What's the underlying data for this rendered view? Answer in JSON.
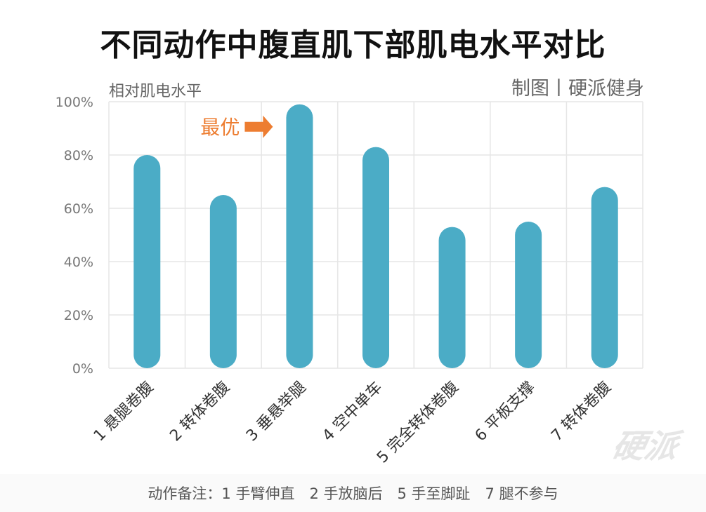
{
  "title": "不同动作中腹直肌下部肌电水平对比",
  "credit": "制图丨硬派健身",
  "watermark": "硬派",
  "footnote": "动作备注：1 手臂伸直　2 手放脑后　5 手至脚趾　7 腿不参与",
  "colors": {
    "bar": "#4bacc6",
    "annotation": "#ed7d31",
    "grid": "#e6e6e6"
  },
  "chart_data": {
    "type": "bar",
    "ylabel": "相对肌电水平",
    "xlabel": "",
    "ylim": [
      0,
      100
    ],
    "yticks": [
      0,
      20,
      40,
      60,
      80,
      100
    ],
    "ytick_labels": [
      "0%",
      "20%",
      "40%",
      "60%",
      "80%",
      "100%"
    ],
    "categories": [
      "1 悬腿卷腹",
      "2 转体卷腹",
      "3 垂悬举腿",
      "4 空中单车",
      "5 完全转体卷腹",
      "6 平板支撑",
      "7 转体卷腹"
    ],
    "values": [
      80,
      65,
      99,
      83,
      53,
      55,
      68
    ],
    "grid": true,
    "annotation": {
      "text": "最优",
      "category_index": 2,
      "icon": "right-arrow-icon"
    }
  }
}
